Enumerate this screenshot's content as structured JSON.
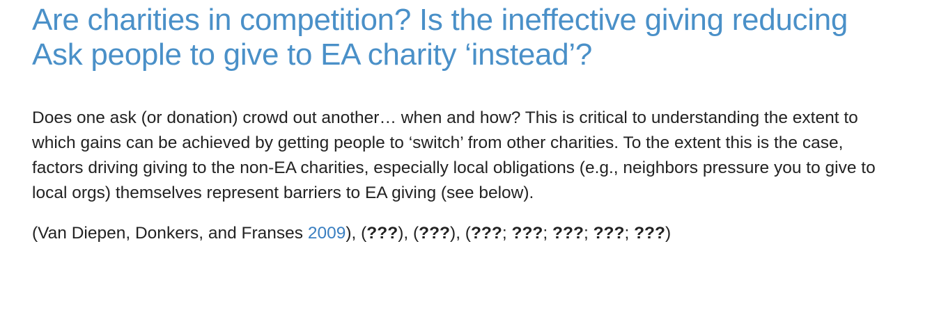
{
  "heading": {
    "line1": "Are charities in competition? Is the ineffective giving reducing",
    "line2": "Ask people to give to EA charity ‘instead’?"
  },
  "body_text": "Does one ask (or donation) crowd out another… when and how? This is critical to understanding the extent to which gains can be achieved by getting people to ‘switch’ from other charities. To the extent this is the case, factors driving giving to the non-EA charities, especially local obligations (e.g., neighbors pressure you to give to local orgs) themselves represent barriers to EA giving (see below).",
  "citation": {
    "prefix": "(Van Diepen, Donkers, and Franses ",
    "year_link": "2009",
    "after_year": "), (",
    "missing_1": "???",
    "sep_1": "), (",
    "missing_2": "???",
    "sep_2": "), (",
    "missing_3": "???",
    "sep_3": "; ",
    "missing_4": "???",
    "sep_4": "; ",
    "missing_5": "???",
    "sep_5": "; ",
    "missing_6": "???",
    "sep_6": "; ",
    "missing_7": "???",
    "suffix": ")"
  },
  "colors": {
    "heading": "#4a90c8",
    "text": "#222222",
    "link": "#3a7fc1"
  }
}
